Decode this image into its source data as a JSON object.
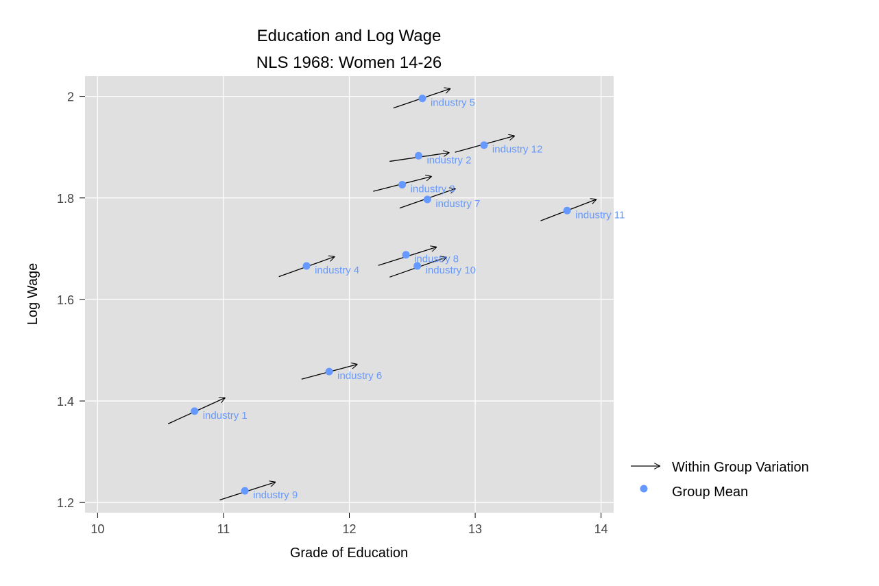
{
  "chart_data": {
    "type": "scatter",
    "title": "Education and Log Wage",
    "subtitle": "NLS 1968: Women 14-26",
    "xlabel": "Grade of Education",
    "ylabel": "Log Wage",
    "xlim": [
      9.9,
      14.1
    ],
    "ylim": [
      1.18,
      2.04
    ],
    "xticks": [
      10,
      11,
      12,
      13,
      14
    ],
    "xtick_labels": [
      "10",
      "11",
      "12",
      "13",
      "14"
    ],
    "yticks": [
      1.2,
      1.4,
      1.6,
      1.8,
      2.0
    ],
    "ytick_labels": [
      "1.2",
      "1.4",
      "1.6",
      "1.8",
      "2"
    ],
    "grid": true,
    "legend": {
      "position": "right",
      "entries": [
        {
          "label": "Within Group Variation",
          "symbol": "arrow"
        },
        {
          "label": "Group Mean",
          "symbol": "dot"
        }
      ]
    },
    "colors": {
      "panel_background": "#e0e0e0",
      "grid": "#ffffff",
      "point": "#6699ff",
      "label": "#6699ff",
      "arrow": "#000000"
    },
    "series": [
      {
        "name": "Group Mean",
        "points": [
          {
            "label": "industry 1",
            "x": 10.77,
            "y": 1.38
          },
          {
            "label": "industry 2",
            "x": 12.55,
            "y": 1.883
          },
          {
            "label": "industry 3",
            "x": 12.42,
            "y": 1.826
          },
          {
            "label": "industry 4",
            "x": 11.66,
            "y": 1.666
          },
          {
            "label": "industry 5",
            "x": 12.58,
            "y": 1.996
          },
          {
            "label": "industry 6",
            "x": 11.84,
            "y": 1.458
          },
          {
            "label": "industry 7",
            "x": 12.62,
            "y": 1.797
          },
          {
            "label": "industry 8",
            "x": 12.45,
            "y": 1.688
          },
          {
            "label": "industry 9",
            "x": 11.17,
            "y": 1.223
          },
          {
            "label": "industry 10",
            "x": 12.54,
            "y": 1.666
          },
          {
            "label": "industry 11",
            "x": 13.73,
            "y": 1.775
          },
          {
            "label": "industry 12",
            "x": 13.07,
            "y": 1.904
          }
        ]
      },
      {
        "name": "Within Group Variation",
        "arrows": [
          {
            "x0": 10.56,
            "y0": 1.355,
            "x1": 11.01,
            "y1": 1.406
          },
          {
            "x0": 12.32,
            "y0": 1.872,
            "x1": 12.79,
            "y1": 1.889
          },
          {
            "x0": 12.19,
            "y0": 1.813,
            "x1": 12.65,
            "y1": 1.842
          },
          {
            "x0": 11.44,
            "y0": 1.645,
            "x1": 11.88,
            "y1": 1.684
          },
          {
            "x0": 12.35,
            "y0": 1.977,
            "x1": 12.8,
            "y1": 2.015
          },
          {
            "x0": 11.62,
            "y0": 1.443,
            "x1": 12.06,
            "y1": 1.472
          },
          {
            "x0": 12.4,
            "y0": 1.78,
            "x1": 12.84,
            "y1": 1.818
          },
          {
            "x0": 12.23,
            "y0": 1.667,
            "x1": 12.69,
            "y1": 1.703
          },
          {
            "x0": 10.97,
            "y0": 1.205,
            "x1": 11.41,
            "y1": 1.24
          },
          {
            "x0": 12.32,
            "y0": 1.644,
            "x1": 12.77,
            "y1": 1.683
          },
          {
            "x0": 13.52,
            "y0": 1.755,
            "x1": 13.96,
            "y1": 1.797
          },
          {
            "x0": 12.84,
            "y0": 1.89,
            "x1": 13.31,
            "y1": 1.922
          }
        ]
      }
    ]
  }
}
